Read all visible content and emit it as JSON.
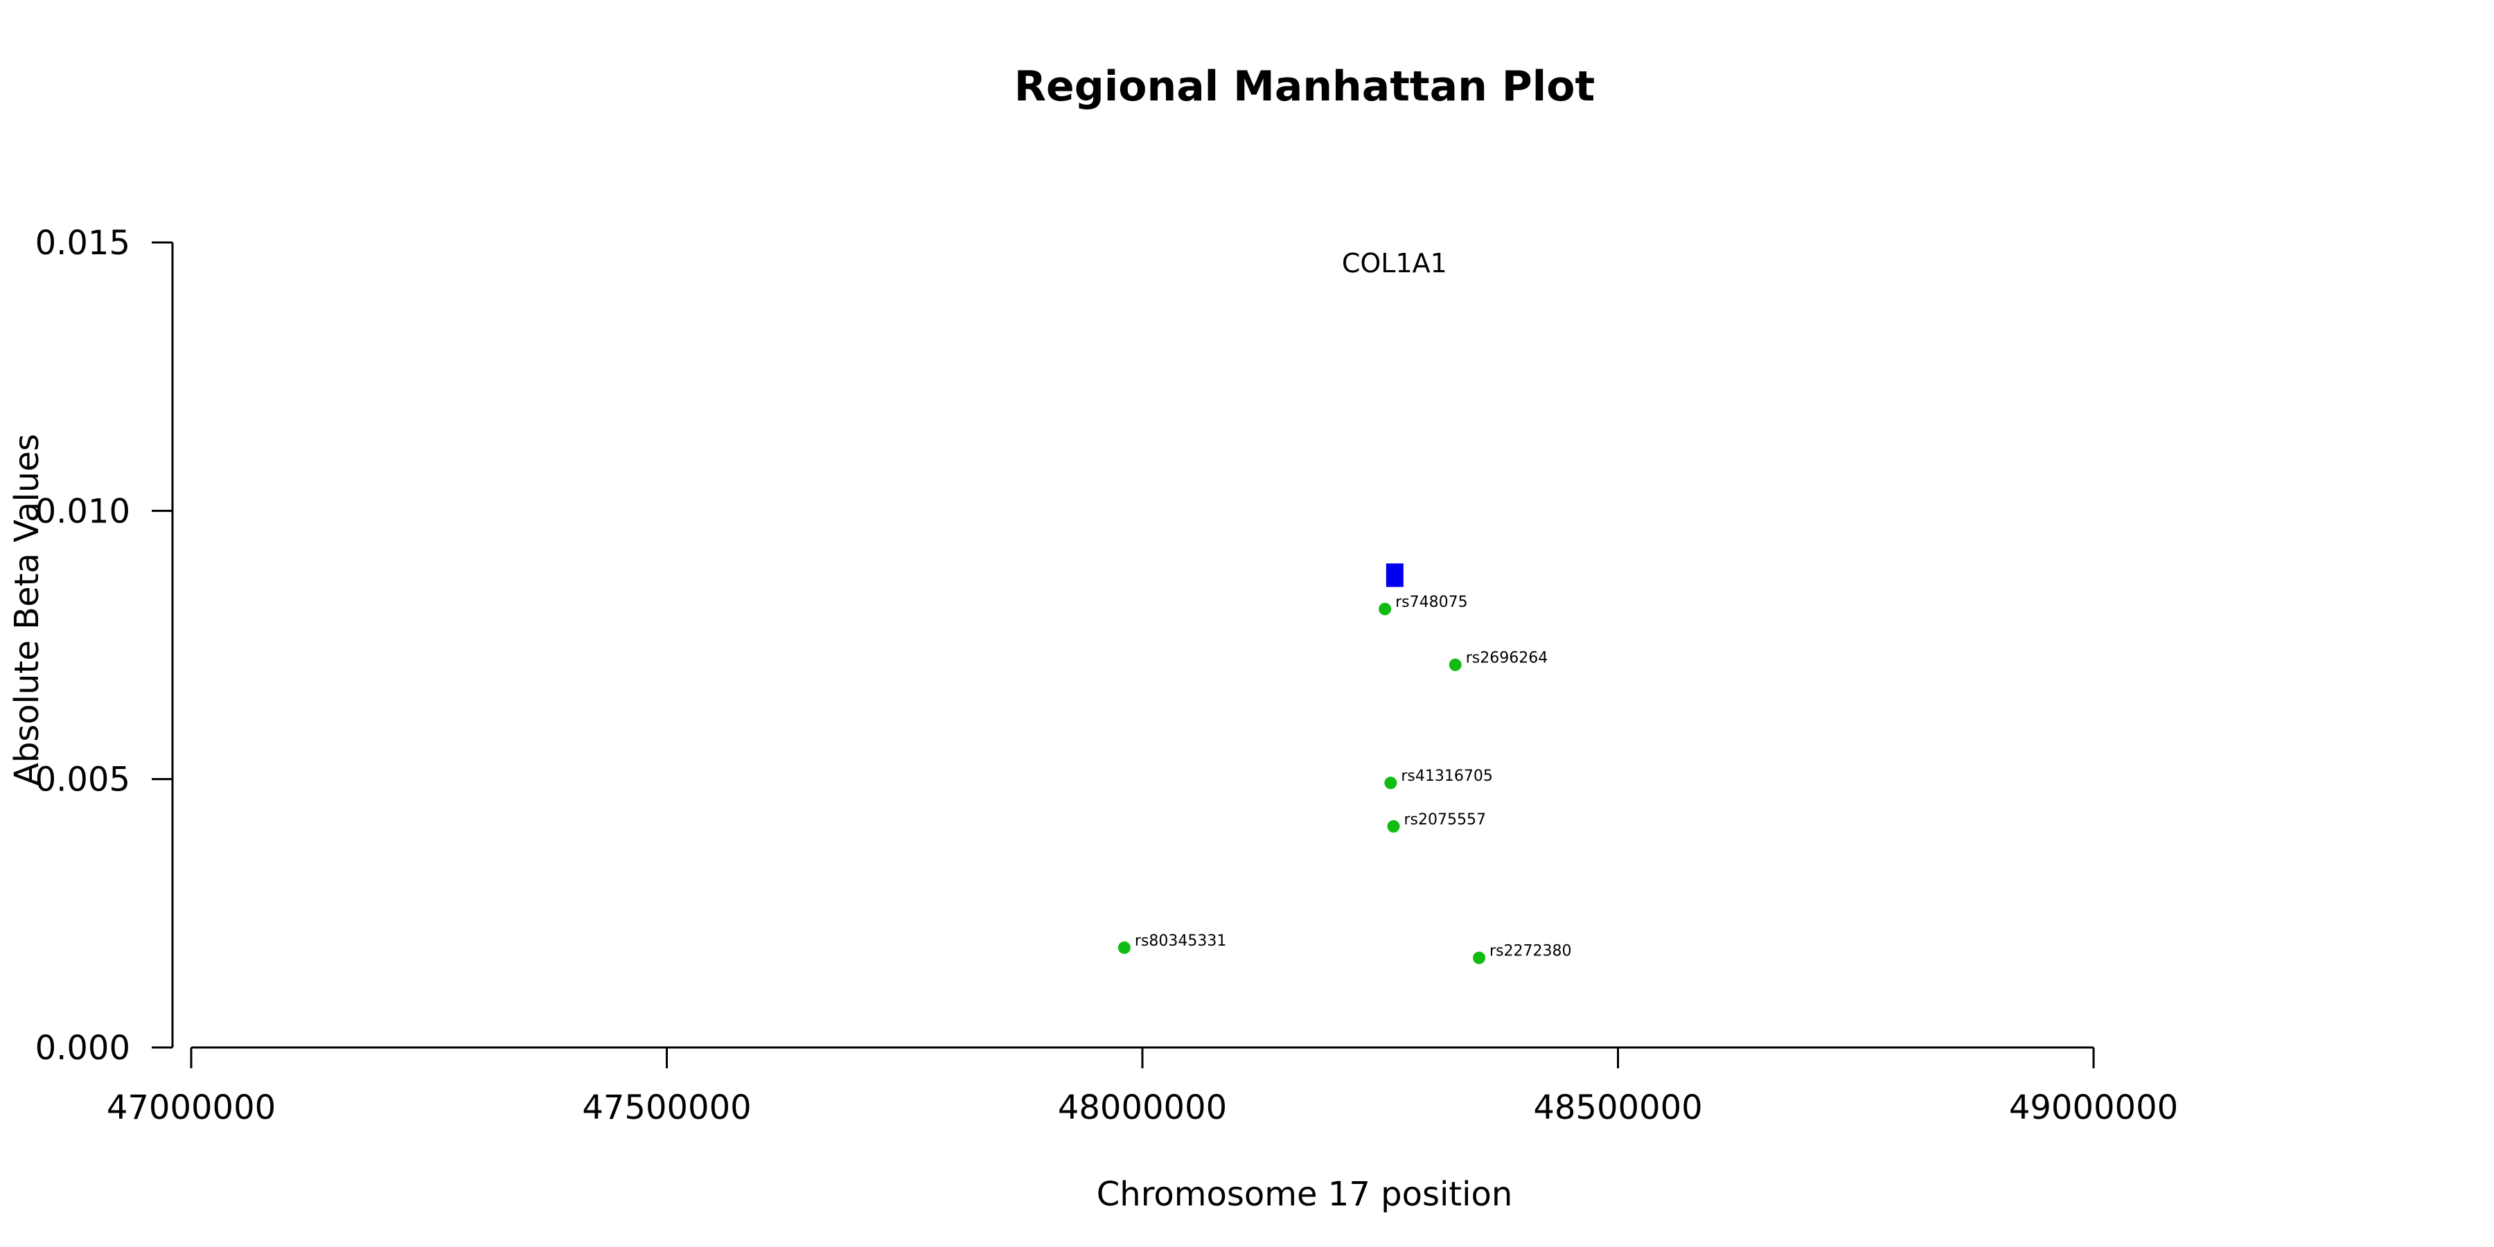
{
  "chart_data": {
    "type": "scatter",
    "title": "Regional Manhattan Plot",
    "xlabel": "Chromosome 17 position",
    "ylabel": "Absolute Beta Values",
    "xlim": [
      47000000,
      49000000
    ],
    "ylim": [
      0,
      0.015
    ],
    "xticks": [
      "47000000",
      "47500000",
      "48000000",
      "48500000",
      "49000000"
    ],
    "yticks": [
      "0.000",
      "0.005",
      "0.010",
      "0.015"
    ],
    "gene": {
      "name": "COL1A1",
      "x": 48265000,
      "y": 0.0088,
      "color": "#0000ee"
    },
    "points_color": "#11bb11",
    "points": [
      {
        "label": "rs748075",
        "x": 48255000,
        "y": 0.00817
      },
      {
        "label": "rs2696264",
        "x": 48329000,
        "y": 0.00713
      },
      {
        "label": "rs41316705",
        "x": 48261000,
        "y": 0.00493
      },
      {
        "label": "rs2075557",
        "x": 48264000,
        "y": 0.00412
      },
      {
        "label": "rs80345331",
        "x": 47981000,
        "y": 0.00186
      },
      {
        "label": "rs2272380",
        "x": 48354000,
        "y": 0.00167
      }
    ]
  }
}
